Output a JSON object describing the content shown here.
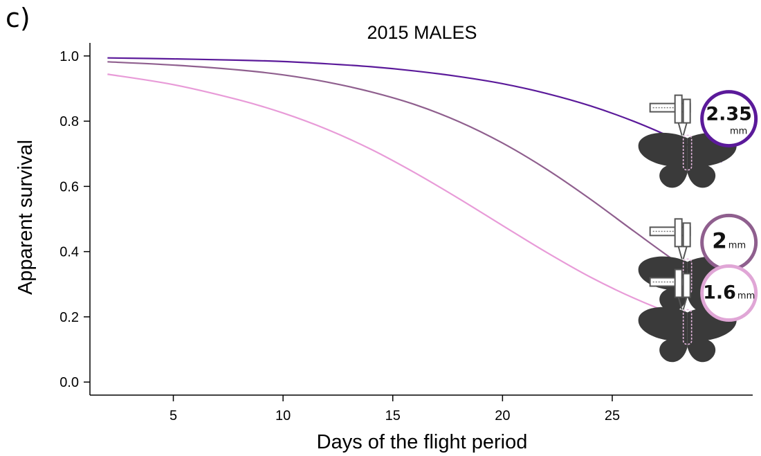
{
  "panel_label": "c)",
  "chart_data": {
    "type": "line",
    "title": "2015 MALES",
    "xlabel": "Days of the flight period",
    "ylabel": "Apparent survival",
    "xlim": [
      1.2,
      31.4
    ],
    "ylim": [
      -0.04,
      1.04
    ],
    "xticks": [
      5,
      10,
      15,
      20,
      25
    ],
    "yticks": [
      0.0,
      0.2,
      0.4,
      0.6,
      0.8,
      1.0
    ],
    "ytick_labels": [
      "0.0",
      "0.2",
      "0.4",
      "0.6",
      "0.8",
      "1.0"
    ],
    "grid": false,
    "series": [
      {
        "color": "#5b1a9a",
        "x": [
          2,
          5,
          8,
          10,
          12,
          14,
          16,
          18,
          20,
          22,
          24,
          26,
          28,
          30
        ],
        "y": [
          0.994,
          0.991,
          0.987,
          0.983,
          0.976,
          0.967,
          0.954,
          0.937,
          0.915,
          0.885,
          0.847,
          0.799,
          0.741,
          0.675
        ]
      },
      {
        "color": "#8f5f8e",
        "x": [
          2,
          5,
          8,
          10,
          12,
          14,
          16,
          18,
          20,
          22,
          24,
          26,
          28,
          30
        ],
        "y": [
          0.982,
          0.972,
          0.957,
          0.942,
          0.92,
          0.89,
          0.851,
          0.799,
          0.733,
          0.653,
          0.561,
          0.462,
          0.365,
          0.277
        ]
      },
      {
        "color": "#e89bd8",
        "x": [
          2,
          5,
          8,
          10,
          12,
          14,
          16,
          18,
          20,
          22,
          24,
          26,
          28,
          30
        ],
        "y": [
          0.944,
          0.912,
          0.865,
          0.825,
          0.775,
          0.714,
          0.642,
          0.563,
          0.48,
          0.398,
          0.322,
          0.257,
          0.203,
          0.16
        ]
      }
    ],
    "annotations": [
      {
        "main": "2.35",
        "unit": "mm",
        "color": "#5b1a9a",
        "series": 0
      },
      {
        "main": "2",
        "unit": "mm",
        "color": "#8f5f8e",
        "series": 1
      },
      {
        "main": "1.6",
        "unit": "mm",
        "color": "#e0a6d6",
        "series": 2
      }
    ]
  }
}
